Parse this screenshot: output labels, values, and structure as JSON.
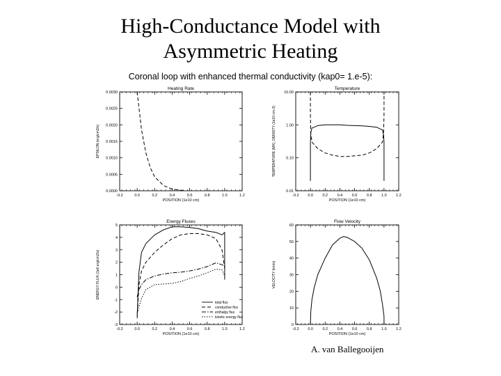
{
  "slide": {
    "title_line1": "High-Conductance Model with",
    "title_line2": "Asymmetric Heating",
    "author": "A. van Ballegooijen"
  },
  "figure": {
    "supertitle": "Coronal loop with enhanced thermal conductivity (kap0= 1.e-5):"
  },
  "chart_data": [
    {
      "type": "line",
      "title": "Heating Rate",
      "xlabel": "POSITION (1e10 cm)",
      "ylabel": "EPSILON (erg/cm3/s)",
      "xlim": [
        -0.2,
        1.2
      ],
      "ylim": [
        0,
        0.003
      ],
      "xticks": [
        "-0.2",
        "0.0",
        "0.2",
        "0.4",
        "0.6",
        "0.8",
        "1.0",
        "1.2"
      ],
      "yticks": [
        "0.0000",
        "0.0005",
        "0.0010",
        "0.0015",
        "0.0020",
        "0.0025",
        "0.0030"
      ],
      "series": [
        {
          "style": "dashed",
          "x": [
            0.0,
            0.05,
            0.1,
            0.15,
            0.2,
            0.3,
            0.4,
            0.55
          ],
          "y": [
            0.003,
            0.00185,
            0.00115,
            0.0007,
            0.00042,
            0.00016,
            5e-05,
            0.0
          ]
        }
      ]
    },
    {
      "type": "line",
      "title": "Temperature",
      "xlabel": "POSITION (1e10 cm)",
      "ylabel": "TEMPERATURE (MK), DENSITY (1e10 cm-3)",
      "xlim": [
        -0.2,
        1.2
      ],
      "ylim": [
        0.01,
        10
      ],
      "yscale": "log",
      "xticks": [
        "-0.2",
        "0.0",
        "0.2",
        "0.4",
        "0.6",
        "0.8",
        "1.0",
        "1.2"
      ],
      "yticks": [
        "0.01",
        "0.10",
        "1.00",
        "10.00"
      ],
      "series": [
        {
          "style": "solid",
          "x": [
            0.0,
            0.0,
            0.005,
            0.02,
            0.1,
            0.2,
            0.3,
            0.4,
            0.5,
            0.6,
            0.7,
            0.8,
            0.9,
            0.98,
            0.995,
            1.0,
            1.0
          ],
          "y": [
            0.02,
            0.3,
            0.6,
            0.8,
            0.95,
            1.0,
            1.0,
            1.0,
            0.97,
            0.95,
            0.93,
            0.9,
            0.85,
            0.7,
            0.5,
            0.3,
            0.02
          ]
        },
        {
          "style": "dashed",
          "x": [
            0.0,
            0.0,
            0.005,
            0.02,
            0.1,
            0.2,
            0.3,
            0.4,
            0.5,
            0.6,
            0.7,
            0.8,
            0.9,
            0.98,
            0.995,
            1.0,
            1.0
          ],
          "y": [
            10.0,
            2.0,
            0.5,
            0.3,
            0.19,
            0.14,
            0.12,
            0.11,
            0.11,
            0.115,
            0.12,
            0.14,
            0.19,
            0.3,
            0.6,
            2.0,
            10.0
          ]
        }
      ]
    },
    {
      "type": "line",
      "title": "Energy Fluxes",
      "xlabel": "POSITION (1e10 cm)",
      "ylabel": "ENERGY FLUX (1e6 erg/cm2/s)",
      "xlim": [
        -0.2,
        1.2
      ],
      "ylim": [
        -3,
        5
      ],
      "xticks": [
        "-0.2",
        "0.0",
        "0.2",
        "0.4",
        "0.6",
        "0.8",
        "1.0",
        "1.2"
      ],
      "yticks": [
        "-3",
        "-2",
        "-1",
        "0",
        "1",
        "2",
        "3",
        "4",
        "5"
      ],
      "legend": {
        "position": "bottom-right",
        "entries": [
          "total flux",
          "conductive flux",
          "enthalpy flux",
          "kinetic energy flux"
        ]
      },
      "series": [
        {
          "name": "total flux",
          "style": "solid",
          "x": [
            0.0,
            0.02,
            0.05,
            0.1,
            0.2,
            0.3,
            0.4,
            0.5,
            0.6,
            0.7,
            0.8,
            0.9,
            0.97,
            1.0,
            1.0
          ],
          "y": [
            -2.3,
            1.2,
            2.8,
            3.5,
            4.2,
            4.6,
            4.85,
            4.85,
            4.8,
            4.7,
            4.5,
            4.4,
            4.2,
            4.4,
            0.6
          ]
        },
        {
          "name": "conductive flux",
          "style": "dashed",
          "x": [
            0.0,
            0.02,
            0.05,
            0.1,
            0.2,
            0.3,
            0.4,
            0.5,
            0.6,
            0.7,
            0.8,
            0.9,
            0.97,
            1.0
          ],
          "y": [
            -2.5,
            0.2,
            1.3,
            2.0,
            2.8,
            3.4,
            3.9,
            4.2,
            4.3,
            4.3,
            4.2,
            3.9,
            3.0,
            1.5
          ]
        },
        {
          "name": "enthalpy flux",
          "style": "dash-dot",
          "x": [
            0.0,
            0.02,
            0.05,
            0.1,
            0.2,
            0.3,
            0.4,
            0.5,
            0.6,
            0.7,
            0.8,
            0.9,
            0.97,
            1.0
          ],
          "y": [
            -0.8,
            -0.2,
            0.2,
            0.6,
            0.9,
            1.05,
            1.15,
            1.2,
            1.3,
            1.45,
            1.65,
            1.95,
            1.8,
            1.7
          ]
        },
        {
          "name": "kinetic energy flux",
          "style": "dotted",
          "x": [
            0.0,
            0.02,
            0.05,
            0.1,
            0.2,
            0.3,
            0.4,
            0.5,
            0.6,
            0.7,
            0.8,
            0.9,
            0.97,
            1.0
          ],
          "y": [
            -2.1,
            -1.6,
            -0.9,
            -0.2,
            0.2,
            0.25,
            0.3,
            0.45,
            0.7,
            0.9,
            1.15,
            1.45,
            1.4,
            0.9
          ]
        }
      ]
    },
    {
      "type": "line",
      "title": "Flow Velocity",
      "xlabel": "POSITION (1e10 cm)",
      "ylabel": "VELOCITY (km/s)",
      "xlim": [
        -0.2,
        1.2
      ],
      "ylim": [
        0,
        60
      ],
      "xticks": [
        "-0.2",
        "0.0",
        "0.2",
        "0.4",
        "0.6",
        "0.8",
        "1.0",
        "1.2"
      ],
      "yticks": [
        "0",
        "10",
        "20",
        "30",
        "40",
        "50",
        "60"
      ],
      "series": [
        {
          "style": "solid",
          "x": [
            0.0,
            0.005,
            0.02,
            0.05,
            0.1,
            0.2,
            0.3,
            0.4,
            0.45,
            0.5,
            0.6,
            0.7,
            0.8,
            0.9,
            0.95,
            0.98,
            1.0,
            1.0
          ],
          "y": [
            0,
            8,
            15,
            22,
            30,
            40,
            48,
            52,
            53,
            52.5,
            50,
            46,
            39,
            28,
            20,
            12,
            5,
            0
          ]
        }
      ]
    }
  ]
}
